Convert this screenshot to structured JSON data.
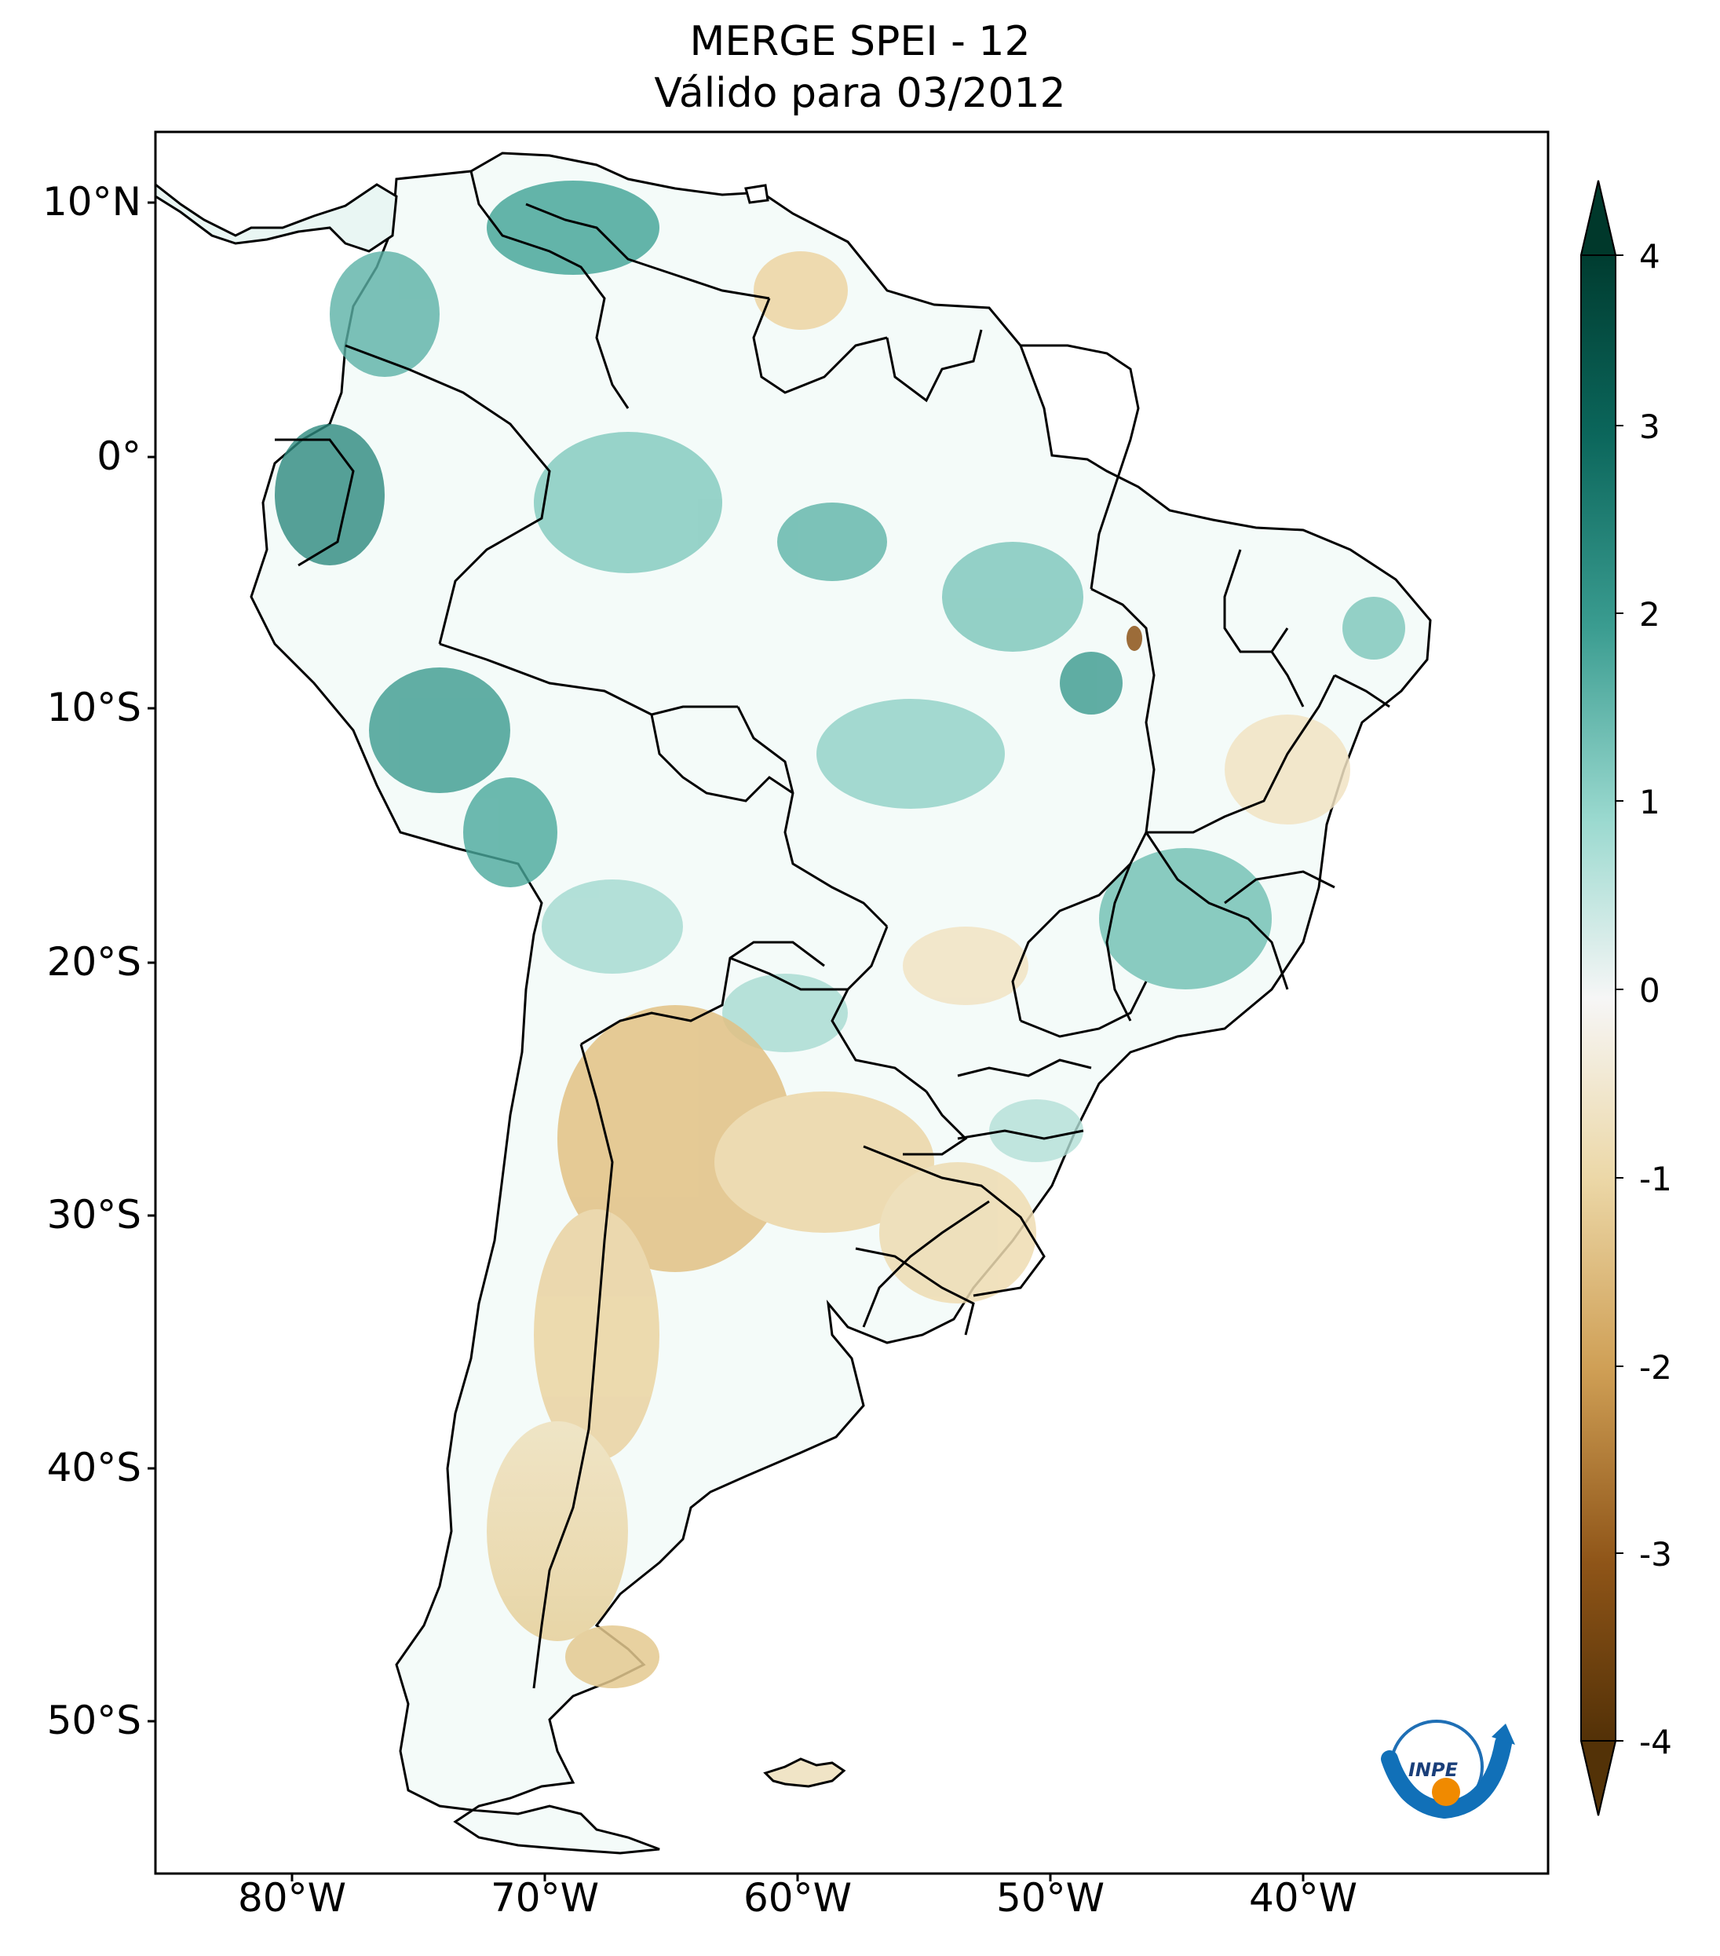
{
  "title": {
    "line1": "MERGE   SPEI - 12",
    "line2": "Válido para 03/2012"
  },
  "map": {
    "region": "South America",
    "lat_ticks": [
      "10°N",
      "0°",
      "10°S",
      "20°S",
      "30°S",
      "40°S",
      "50°S"
    ],
    "lon_ticks": [
      "80°W",
      "70°W",
      "60°W",
      "50°W",
      "40°W"
    ],
    "logo_text": "INPE"
  },
  "colorbar": {
    "labels": [
      "4",
      "3",
      "2",
      "1",
      "0",
      "-1",
      "-2",
      "-3",
      "-4"
    ],
    "min": -4,
    "max": 4,
    "colors": {
      "max": "#00382b",
      "high": "#2e8f86",
      "mid_high": "#8fd3c8",
      "zero": "#f5f5f5",
      "mid_low": "#e8d19e",
      "low": "#b67a2b",
      "min": "#533207"
    }
  }
}
